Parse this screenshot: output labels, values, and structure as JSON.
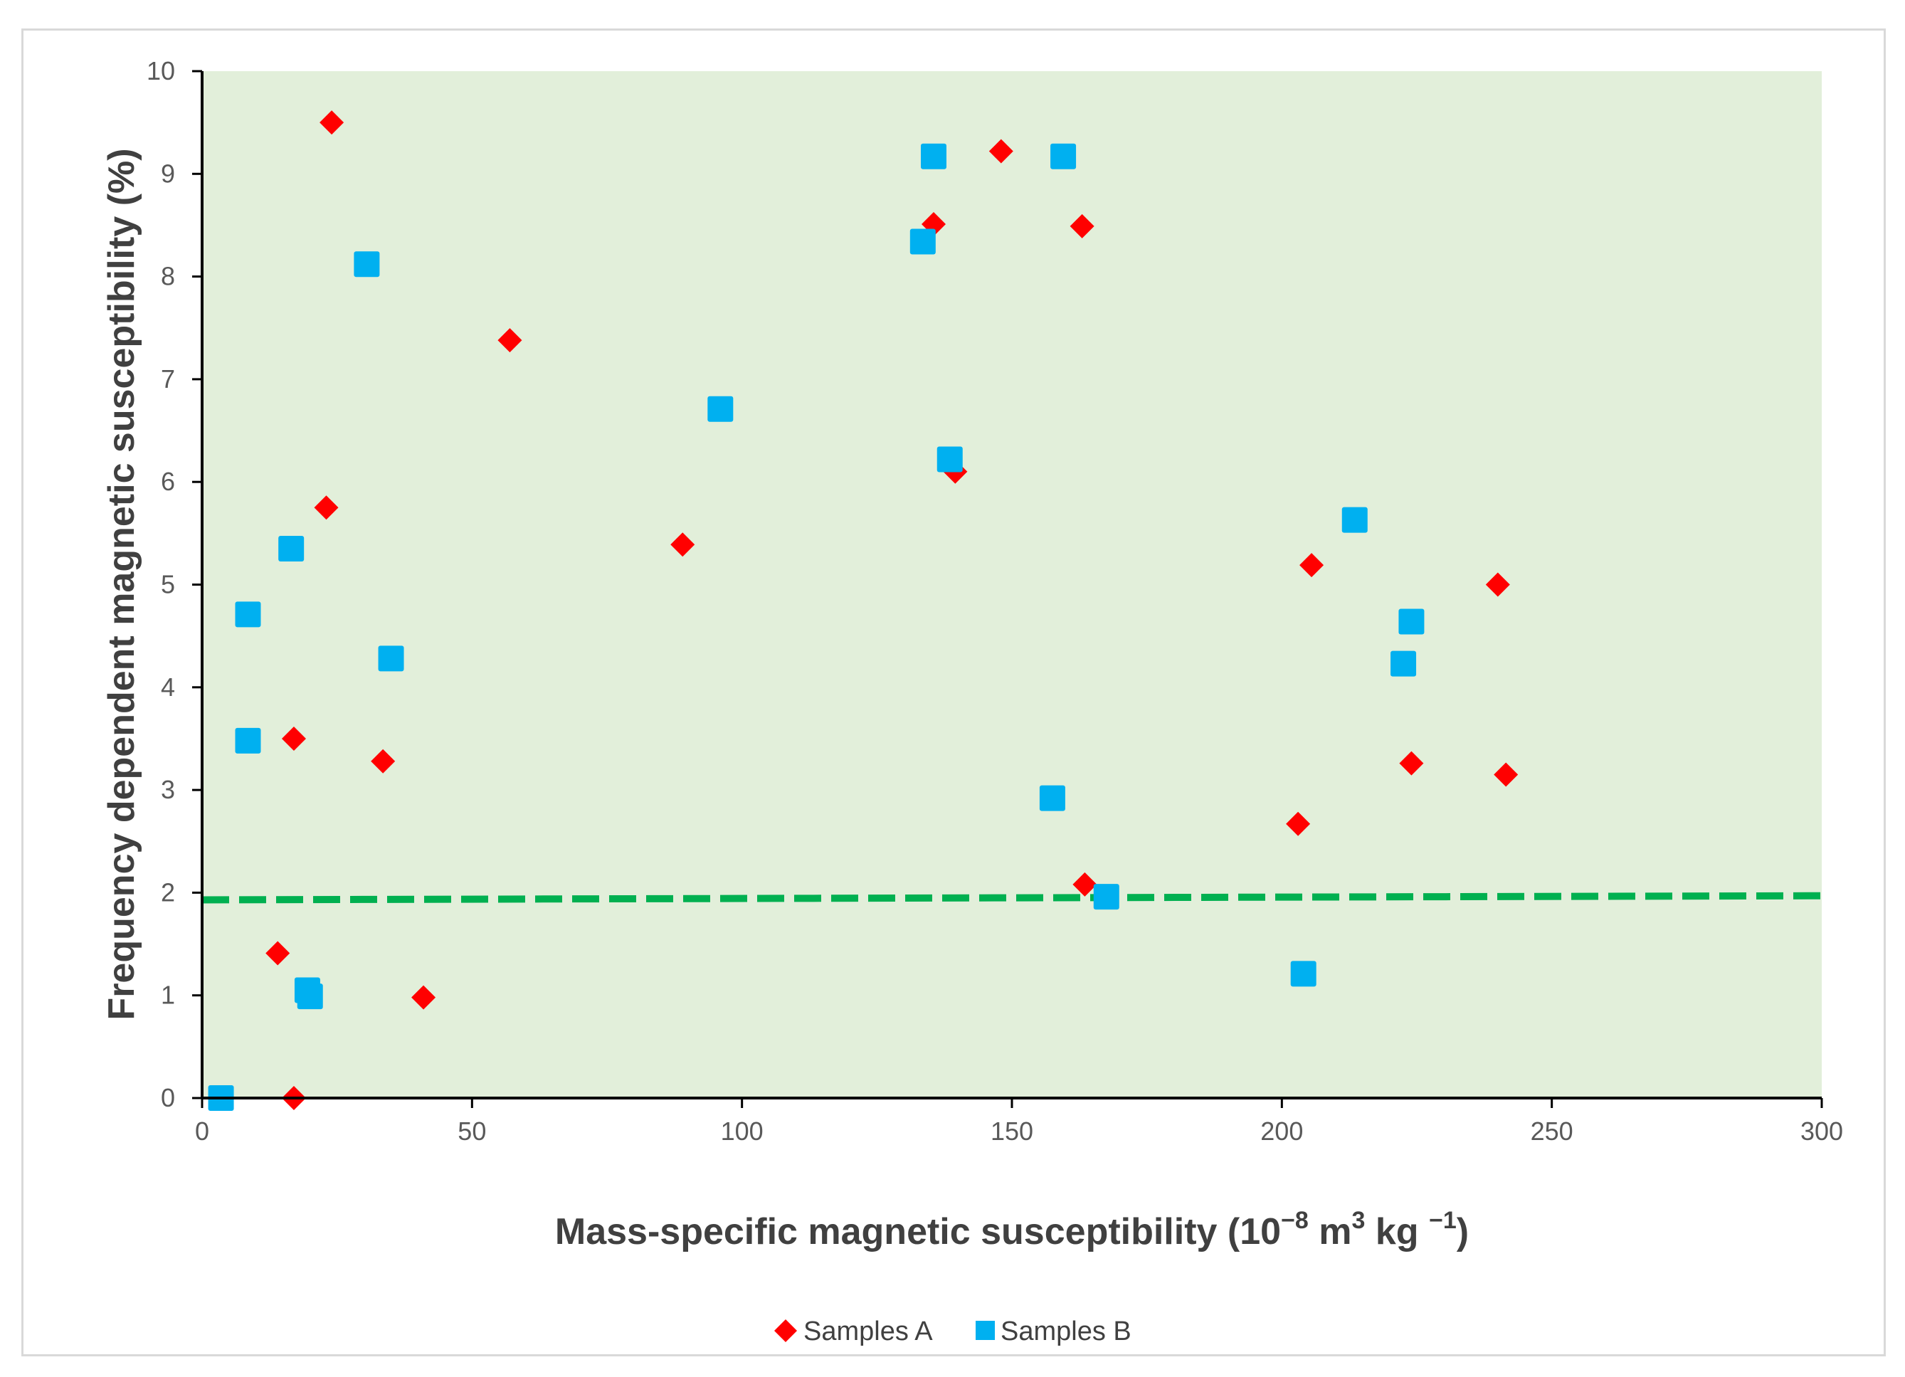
{
  "chart_data": {
    "type": "scatter",
    "xlabel_parts": [
      "Mass-specific magnetic susceptibility (10",
      "−8",
      " m",
      "3",
      " kg ",
      "−1",
      ")"
    ],
    "ylabel": "Frequency dependent magnetic susceptibility (%)",
    "xlim": [
      0,
      300
    ],
    "ylim": [
      0,
      10
    ],
    "x_ticks": [
      0,
      50,
      100,
      150,
      200,
      250,
      300
    ],
    "y_ticks": [
      0,
      1,
      2,
      3,
      4,
      5,
      6,
      7,
      8,
      9,
      10
    ],
    "x_tick_labels": [
      "0",
      "50",
      "100",
      "150",
      "200",
      "250",
      "300"
    ],
    "y_tick_labels": [
      "0",
      "1",
      "2",
      "3",
      "4",
      "5",
      "6",
      "7",
      "8",
      "9",
      "10"
    ],
    "grid": false,
    "legend_position": "bottom",
    "plot_background": "#e2efda",
    "series": [
      {
        "name": "Samples A",
        "marker": "diamond",
        "color": "#ff0000",
        "points": [
          [
            24,
            9.5
          ],
          [
            23,
            5.75
          ],
          [
            57,
            7.38
          ],
          [
            17,
            3.5
          ],
          [
            33.5,
            3.28
          ],
          [
            14,
            1.41
          ],
          [
            41,
            0.98
          ],
          [
            17,
            0.0
          ],
          [
            89,
            5.39
          ],
          [
            135.5,
            8.51
          ],
          [
            148,
            9.22
          ],
          [
            163,
            8.49
          ],
          [
            139.5,
            6.1
          ],
          [
            163.5,
            2.08
          ],
          [
            205.5,
            5.19
          ],
          [
            240,
            5.0
          ],
          [
            224,
            3.26
          ],
          [
            203,
            2.67
          ],
          [
            241.5,
            3.15
          ]
        ]
      },
      {
        "name": "Samples B",
        "marker": "square",
        "color": "#00b0f0",
        "points": [
          [
            30.5,
            8.12
          ],
          [
            16.5,
            5.35
          ],
          [
            8.5,
            4.71
          ],
          [
            35,
            4.28
          ],
          [
            8.5,
            3.48
          ],
          [
            19.5,
            1.05
          ],
          [
            20,
            0.99
          ],
          [
            3.5,
            0.0
          ],
          [
            96,
            6.71
          ],
          [
            135.5,
            9.17
          ],
          [
            159.5,
            9.17
          ],
          [
            133.5,
            8.34
          ],
          [
            138.5,
            6.22
          ],
          [
            157.5,
            2.92
          ],
          [
            167.5,
            1.96
          ],
          [
            213.5,
            5.63
          ],
          [
            224,
            4.64
          ],
          [
            222.5,
            4.23
          ],
          [
            204,
            1.21
          ]
        ]
      }
    ],
    "threshold_line": {
      "y_start": 1.93,
      "y_end": 1.97,
      "color": "#00b050",
      "style": "dashed"
    }
  }
}
